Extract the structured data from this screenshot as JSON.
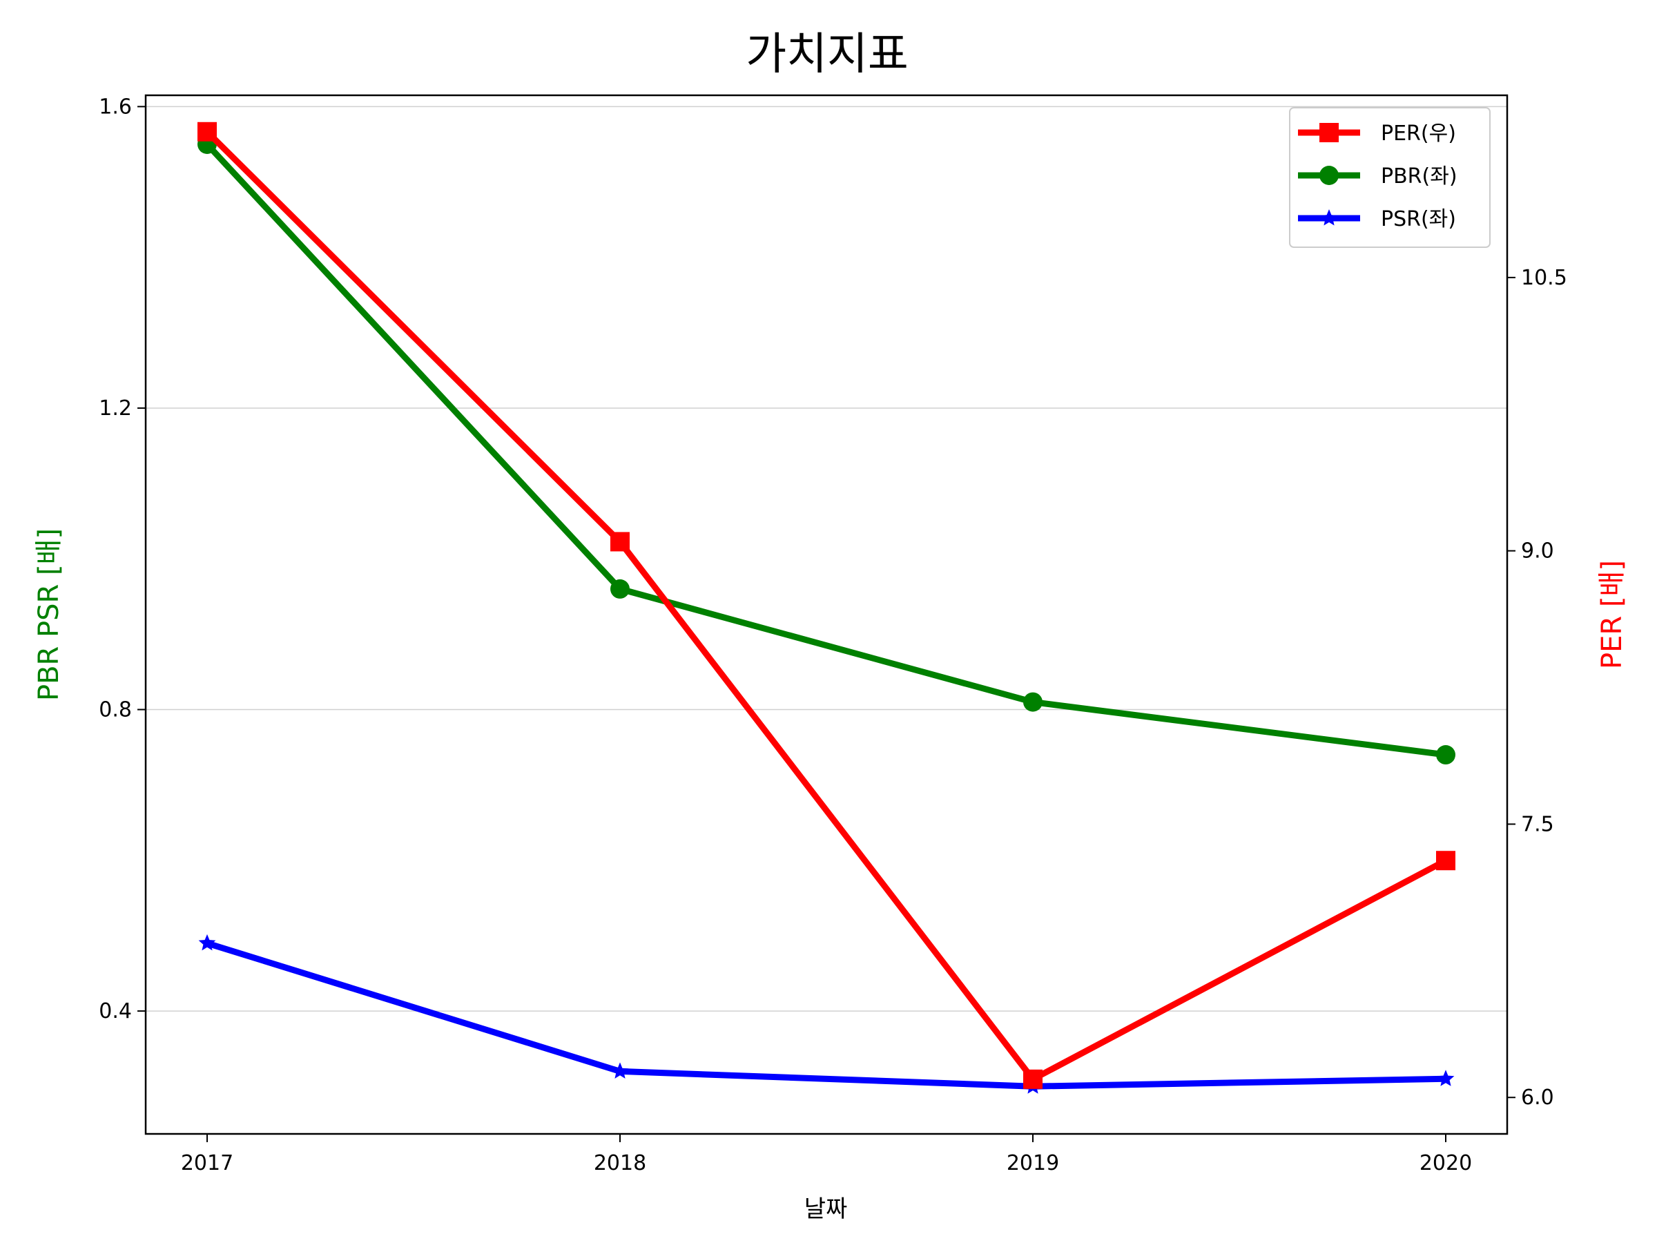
{
  "chart_data": {
    "type": "line",
    "title": "가치지표",
    "xlabel": "날짜",
    "ylabel_left": "PBR PSR [배]",
    "ylabel_right": "PER [배]",
    "categories": [
      "2017",
      "2018",
      "2019",
      "2020"
    ],
    "ylim_left": [
      0.237,
      1.615
    ],
    "ylim_right": [
      5.8,
      11.5
    ],
    "yticks_left": [
      "0.4",
      "0.8",
      "1.2",
      "1.6"
    ],
    "yticks_right": [
      "6.0",
      "7.5",
      "9.0",
      "10.5"
    ],
    "grid": "horizontal (left axis)",
    "legend_position": "top-right",
    "series": [
      {
        "name": "PER(우)",
        "axis": "right",
        "color": "#ff0000",
        "marker": "square",
        "values": [
          11.3,
          9.05,
          6.1,
          7.3
        ]
      },
      {
        "name": "PBR(좌)",
        "axis": "left",
        "color": "#008000",
        "marker": "circle",
        "values": [
          1.55,
          0.96,
          0.81,
          0.74
        ]
      },
      {
        "name": "PSR(좌)",
        "axis": "left",
        "color": "#0000ff",
        "marker": "star",
        "values": [
          0.49,
          0.32,
          0.3,
          0.31
        ]
      }
    ]
  }
}
